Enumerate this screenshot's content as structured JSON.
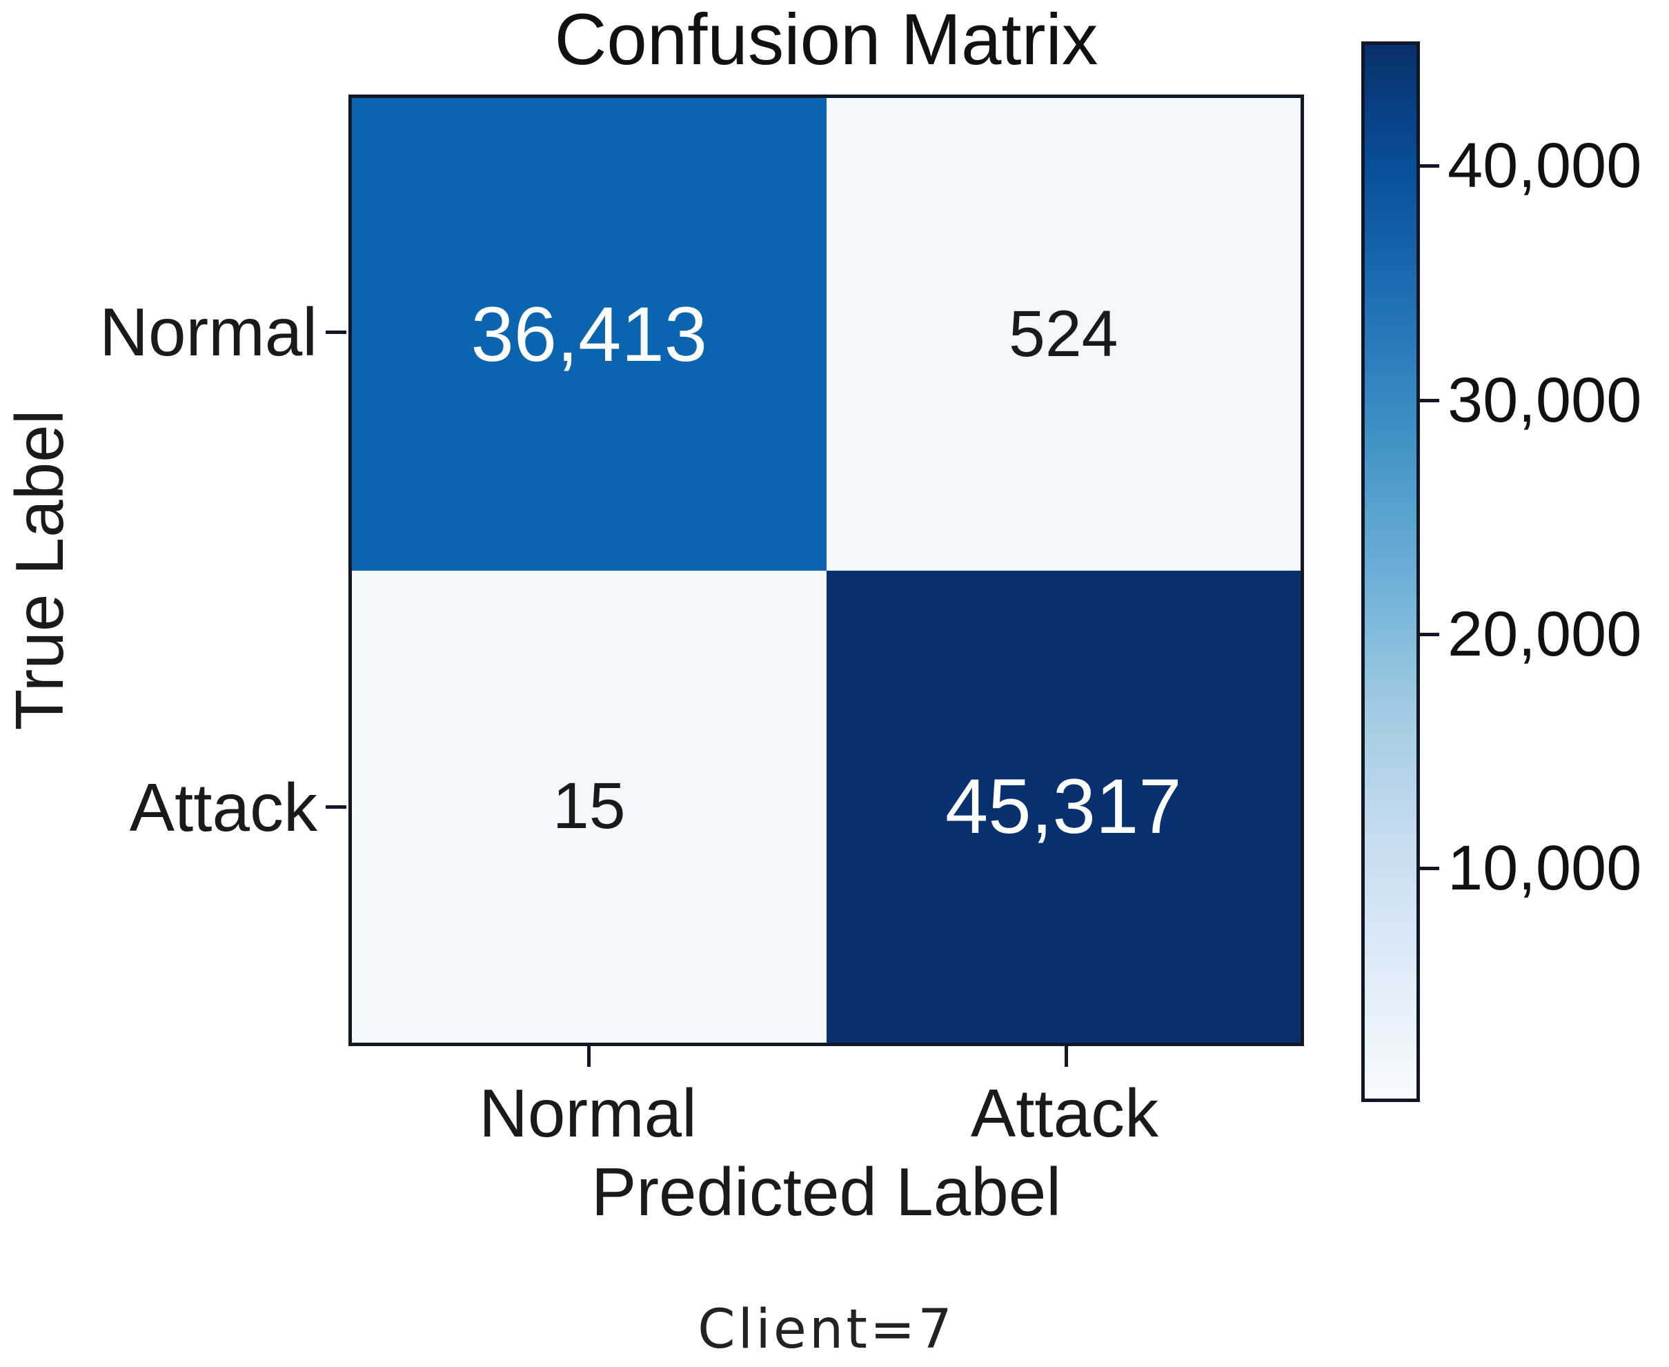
{
  "figure": {
    "title": "Confusion Matrix",
    "x_axis_label": "Predicted Label",
    "y_axis_label": "True Label",
    "caption": "Client=7"
  },
  "chart_data": {
    "type": "heatmap",
    "title": "Confusion Matrix",
    "xlabel": "Predicted Label",
    "ylabel": "True Label",
    "x_categories": [
      "Normal",
      "Attack"
    ],
    "y_categories": [
      "Normal",
      "Attack"
    ],
    "matrix": [
      [
        36413,
        524
      ],
      [
        15,
        45317
      ]
    ],
    "cell_labels": [
      [
        "36,413",
        "524"
      ],
      [
        "15",
        "45,317"
      ]
    ],
    "cell_colors": [
      [
        "#0b64b0",
        "#f4f7fc"
      ],
      [
        "#f4f7fc",
        "#06306e"
      ]
    ],
    "cell_text_colors": [
      [
        "#ffffff",
        "#1a1a1a"
      ],
      [
        "#1a1a1a",
        "#ffffff"
      ]
    ],
    "colormap": "Blues",
    "colormap_stops": [
      "#f7fbff",
      "#deebf7",
      "#c6dbef",
      "#9ecae1",
      "#6baed6",
      "#4292c6",
      "#2171b5",
      "#08519c",
      "#08306b"
    ],
    "vmin": 0,
    "vmax": 45317,
    "colorbar_ticks": [
      10000,
      20000,
      30000,
      40000
    ],
    "colorbar_tick_labels": [
      "10,000",
      "20,000",
      "30,000",
      "40,000"
    ],
    "legend_position": "right-colorbar",
    "grid": false,
    "annotation": "Client=7"
  },
  "colors": {
    "axis": "#101828",
    "text": "#1a1a1a",
    "background": "#ffffff"
  }
}
